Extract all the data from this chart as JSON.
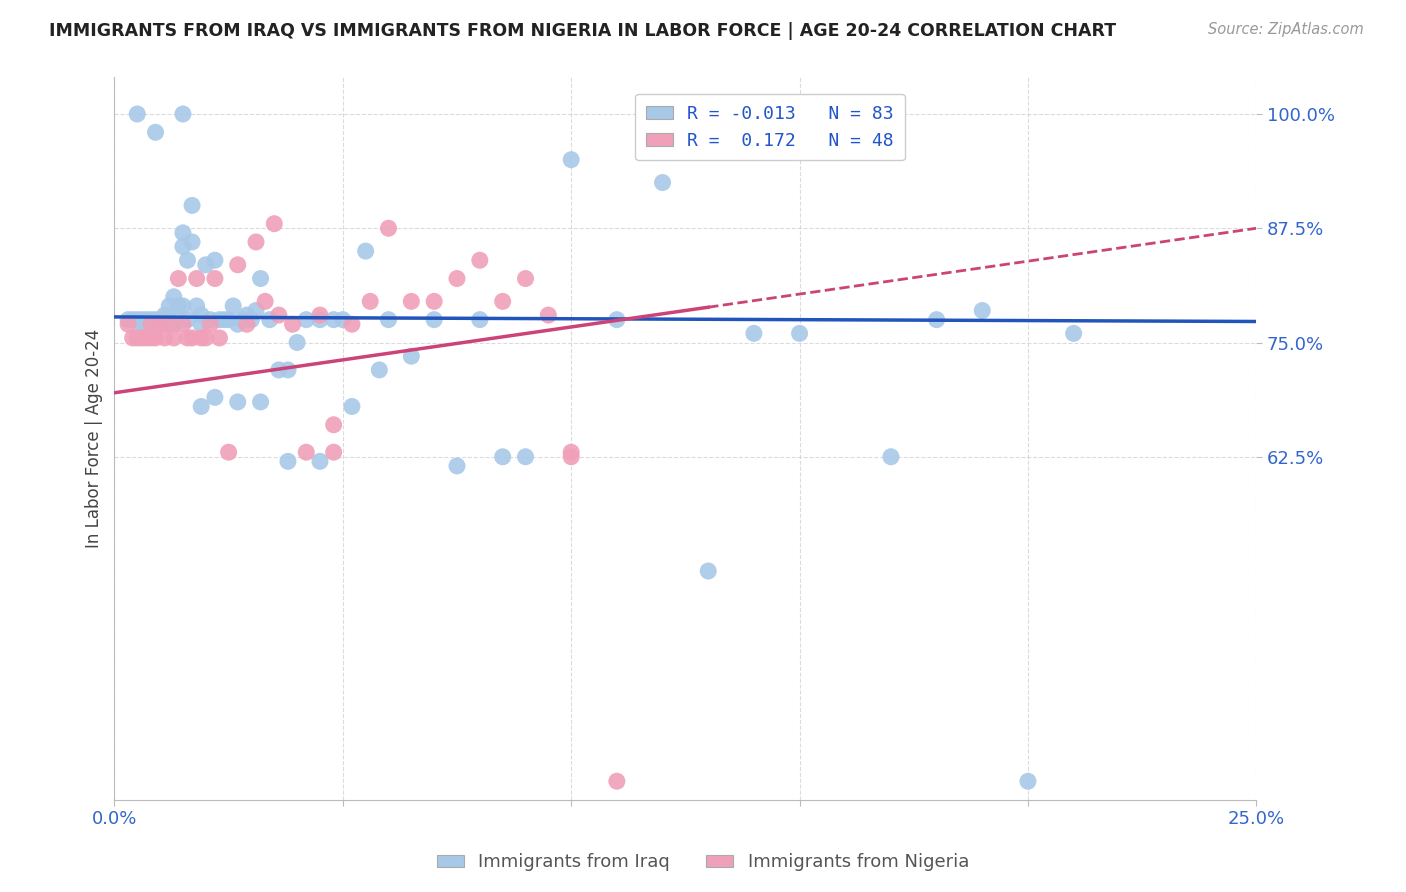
{
  "title": "IMMIGRANTS FROM IRAQ VS IMMIGRANTS FROM NIGERIA IN LABOR FORCE | AGE 20-24 CORRELATION CHART",
  "source": "Source: ZipAtlas.com",
  "ylabel": "In Labor Force | Age 20-24",
  "xlim": [
    0.0,
    0.25
  ],
  "ylim": [
    0.25,
    1.04
  ],
  "yticks": [
    0.625,
    0.75,
    0.875,
    1.0
  ],
  "ytick_labels": [
    "62.5%",
    "75.0%",
    "87.5%",
    "100.0%"
  ],
  "xticks": [
    0.0,
    0.05,
    0.1,
    0.15,
    0.2,
    0.25
  ],
  "xtick_labels": [
    "0.0%",
    "",
    "",
    "",
    "",
    "25.0%"
  ],
  "iraq_R": -0.013,
  "iraq_N": 83,
  "nigeria_R": 0.172,
  "nigeria_N": 48,
  "iraq_color": "#a8c8e8",
  "nigeria_color": "#f0a0b8",
  "iraq_line_color": "#2255bb",
  "nigeria_line_color": "#cc4477",
  "background_color": "#ffffff",
  "grid_color": "#cccccc",
  "iraq_x": [
    0.003,
    0.004,
    0.005,
    0.006,
    0.006,
    0.007,
    0.007,
    0.007,
    0.008,
    0.008,
    0.009,
    0.009,
    0.01,
    0.01,
    0.011,
    0.011,
    0.012,
    0.012,
    0.013,
    0.013,
    0.014,
    0.014,
    0.015,
    0.015,
    0.015,
    0.016,
    0.016,
    0.017,
    0.017,
    0.018,
    0.019,
    0.019,
    0.02,
    0.021,
    0.022,
    0.023,
    0.024,
    0.025,
    0.026,
    0.027,
    0.028,
    0.029,
    0.03,
    0.031,
    0.032,
    0.034,
    0.036,
    0.038,
    0.04,
    0.042,
    0.045,
    0.048,
    0.05,
    0.055,
    0.06,
    0.065,
    0.07,
    0.075,
    0.08,
    0.085,
    0.09,
    0.1,
    0.11,
    0.12,
    0.13,
    0.14,
    0.15,
    0.17,
    0.18,
    0.19,
    0.2,
    0.21,
    0.005,
    0.009,
    0.015,
    0.019,
    0.022,
    0.027,
    0.032,
    0.038,
    0.045,
    0.052,
    0.058
  ],
  "iraq_y": [
    0.775,
    0.775,
    0.775,
    0.775,
    0.77,
    0.775,
    0.77,
    0.765,
    0.775,
    0.77,
    0.775,
    0.77,
    0.775,
    0.77,
    0.78,
    0.77,
    0.79,
    0.775,
    0.8,
    0.77,
    0.79,
    0.775,
    0.87,
    0.855,
    0.79,
    0.84,
    0.775,
    0.9,
    0.86,
    0.79,
    0.78,
    0.77,
    0.835,
    0.775,
    0.84,
    0.775,
    0.775,
    0.775,
    0.79,
    0.77,
    0.775,
    0.78,
    0.775,
    0.785,
    0.82,
    0.775,
    0.72,
    0.72,
    0.75,
    0.775,
    0.775,
    0.775,
    0.775,
    0.85,
    0.775,
    0.735,
    0.775,
    0.615,
    0.775,
    0.625,
    0.625,
    0.95,
    0.775,
    0.925,
    0.5,
    0.76,
    0.76,
    0.625,
    0.775,
    0.785,
    0.27,
    0.76,
    1.0,
    0.98,
    1.0,
    0.68,
    0.69,
    0.685,
    0.685,
    0.62,
    0.62,
    0.68,
    0.72
  ],
  "nigeria_x": [
    0.003,
    0.004,
    0.005,
    0.006,
    0.007,
    0.008,
    0.008,
    0.009,
    0.01,
    0.011,
    0.012,
    0.013,
    0.014,
    0.015,
    0.016,
    0.017,
    0.018,
    0.019,
    0.02,
    0.021,
    0.022,
    0.023,
    0.025,
    0.027,
    0.029,
    0.031,
    0.033,
    0.036,
    0.039,
    0.042,
    0.045,
    0.048,
    0.052,
    0.056,
    0.06,
    0.065,
    0.07,
    0.075,
    0.08,
    0.085,
    0.09,
    0.095,
    0.1,
    0.11,
    0.12,
    0.035,
    0.048,
    0.1
  ],
  "nigeria_y": [
    0.77,
    0.755,
    0.755,
    0.755,
    0.755,
    0.77,
    0.755,
    0.755,
    0.77,
    0.755,
    0.77,
    0.755,
    0.82,
    0.77,
    0.755,
    0.755,
    0.82,
    0.755,
    0.755,
    0.77,
    0.82,
    0.755,
    0.63,
    0.835,
    0.77,
    0.86,
    0.795,
    0.78,
    0.77,
    0.63,
    0.78,
    0.66,
    0.77,
    0.795,
    0.875,
    0.795,
    0.795,
    0.82,
    0.84,
    0.795,
    0.82,
    0.78,
    0.63,
    0.27,
    1.0,
    0.88,
    0.63,
    0.625
  ]
}
